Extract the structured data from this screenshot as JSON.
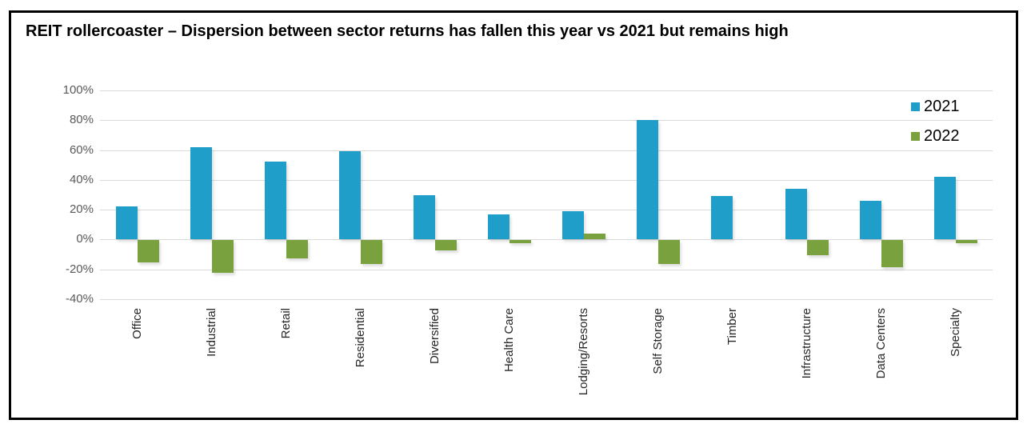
{
  "chart_data": {
    "type": "bar",
    "title": "REIT rollercoaster – Dispersion between sector returns has fallen this year vs 2021 but remains high",
    "categories": [
      "Office",
      "Industrial",
      "Retail",
      "Residential",
      "Diversified",
      "Health Care",
      "Lodging/Resorts",
      "Self Storage",
      "Timber",
      "Infrastructure",
      "Data Centers",
      "Specialty"
    ],
    "series": [
      {
        "name": "2021",
        "color": "#1f9ec9",
        "values": [
          22,
          62,
          52,
          59,
          30,
          17,
          19,
          80,
          29,
          34,
          26,
          42
        ]
      },
      {
        "name": "2022",
        "color": "#79a23e",
        "values": [
          -15,
          -22,
          -12,
          -16,
          -7,
          -2,
          4,
          -16,
          0,
          -10,
          -18,
          -2
        ]
      }
    ],
    "xlabel": "",
    "ylabel": "",
    "ylim": [
      -40,
      100
    ],
    "ytick_step": 20,
    "ytick_labels": [
      "100%",
      "80%",
      "60%",
      "40%",
      "20%",
      "0%",
      "-20%",
      "-40%"
    ],
    "grid": "horizontal",
    "legend_position": "top-right",
    "colors": {
      "gridline": "#d9d9d9",
      "ytick_text": "#595959",
      "category_text": "#262626",
      "title_text": "#000000",
      "frame_border": "#000000",
      "background": "#ffffff"
    }
  }
}
